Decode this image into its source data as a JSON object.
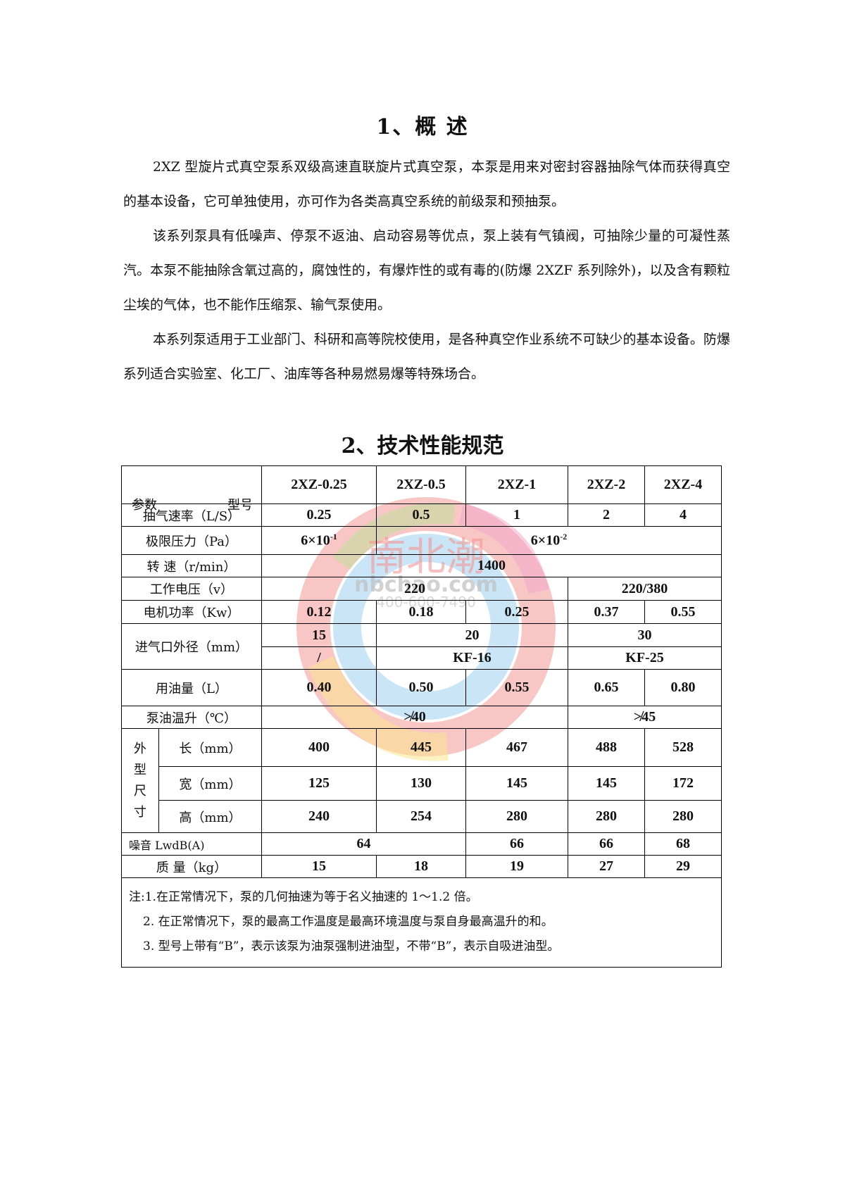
{
  "section1": {
    "title": "1、概 述",
    "paragraphs": [
      "2XZ 型旋片式真空泵系双级高速直联旋片式真空泵，本泵是用来对密封容器抽除气体而获得真空的基本设备，它可单独使用，亦可作为各类高真空系统的前级泵和预抽泵。",
      "该系列泵具有低噪声、停泵不返油、启动容易等优点，泵上装有气镇阀，可抽除少量的可凝性蒸汽。本泵不能抽除含氧过高的，腐蚀性的，有爆炸性的或有毒的(防爆 2XZF 系列除外)，以及含有颗粒尘埃的气体，也不能作压缩泵、输气泵使用。",
      "本系列泵适用于工业部门、科研和高等院校使用，是各种真空作业系统不可缺少的基本设备。防爆系列适合实验室、化工厂、油库等各种易燃易爆等特殊场合。"
    ]
  },
  "section2": {
    "title": "2、技术性能规范",
    "corner": {
      "param": "参数",
      "model": "型号"
    },
    "models": [
      "2XZ-0.25",
      "2XZ-0.5",
      "2XZ-1",
      "2XZ-2",
      "2XZ-4"
    ],
    "rows": {
      "speed": {
        "label": "抽气速率（L/S）",
        "values": [
          "0.25",
          "0.5",
          "1",
          "2",
          "4"
        ]
      },
      "pressure": {
        "label": "极限压力（Pa）",
        "v1_base": "6×10",
        "v1_exp": "-1",
        "v2_base": "6×10",
        "v2_exp": "-2"
      },
      "rpm": {
        "label": "转 速（r/min）",
        "value": "1400"
      },
      "voltage": {
        "label": "工作电压（v）",
        "v1": "220",
        "v2": "220/380"
      },
      "power": {
        "label": "电机功率（Kw）",
        "values": [
          "0.12",
          "0.18",
          "0.25",
          "0.37",
          "0.55"
        ]
      },
      "inlet": {
        "label": "进气口外径（mm）",
        "top": [
          "15",
          "20",
          "30"
        ],
        "bottom": [
          "/",
          "KF-16",
          "KF-25"
        ]
      },
      "oil": {
        "label": "用油量（L）",
        "values": [
          "0.40",
          "0.50",
          "0.55",
          "0.65",
          "0.80"
        ]
      },
      "temp": {
        "label": "泵油温升（℃）",
        "v1": "≯40",
        "v2": "≯45"
      },
      "dims": {
        "group_label": [
          "外",
          "型",
          "尺",
          "寸"
        ],
        "length": {
          "label": "长（mm）",
          "values": [
            "400",
            "445",
            "467",
            "488",
            "528"
          ]
        },
        "width": {
          "label": "宽（mm）",
          "values": [
            "125",
            "130",
            "145",
            "145",
            "172"
          ]
        },
        "height": {
          "label": "高（mm）",
          "values": [
            "240",
            "254",
            "280",
            "280",
            "280"
          ]
        }
      },
      "noise": {
        "label": "噪音 LwdB(A)",
        "values": [
          "64",
          "66",
          "66",
          "68"
        ]
      },
      "mass": {
        "label": "质 量（kg）",
        "values": [
          "15",
          "18",
          "19",
          "27",
          "29"
        ]
      }
    },
    "notes": [
      "注:1.在正常情况下，泵的几何抽速为等于名义抽速的 1～1.2 倍。",
      "2. 在正常情况下，泵的最高工作温度是最高环境温度与泵自身最高温升的和。",
      "3. 型号上带有“B”，表示该泵为油泵强制进油型，不带“B”，表示自吸进油型。"
    ]
  },
  "watermark": {
    "brand": "南北潮",
    "site": "nbchao.com",
    "phone": "400-600-7490",
    "colors": [
      "#e8413c",
      "#f5d033",
      "#3ea0e0",
      "#8cc84b",
      "#e35ca0"
    ]
  }
}
